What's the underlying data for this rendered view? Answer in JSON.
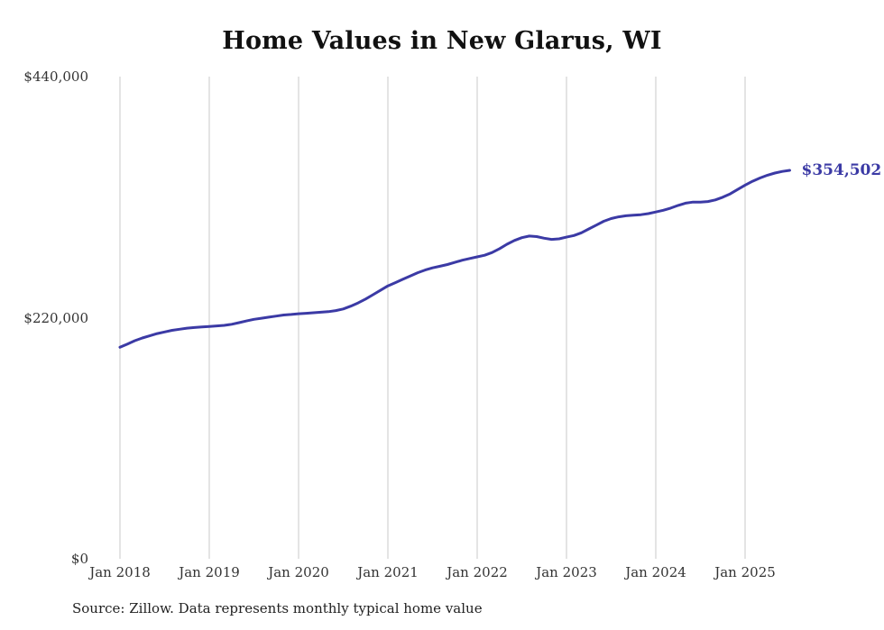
{
  "title": "Home Values in New Glarus, WI",
  "source_note": "Source: Zillow. Data represents monthly typical home value",
  "end_label": "$354,502",
  "colors": {
    "line": "#3b3aa5",
    "end_label": "#3b3aa5",
    "grid": "#c9c9c9",
    "axis_text": "#333333"
  },
  "y_axis": {
    "ticks": [
      {
        "label": "$0",
        "value": 0
      },
      {
        "label": "$220,000",
        "value": 220000
      },
      {
        "label": "$440,000",
        "value": 440000
      }
    ]
  },
  "x_axis": {
    "ticks": [
      "Jan 2018",
      "Jan 2019",
      "Jan 2020",
      "Jan 2021",
      "Jan 2022",
      "Jan 2023",
      "Jan 2024",
      "Jan 2025"
    ]
  },
  "chart_data": {
    "type": "line",
    "title": "Home Values in New Glarus, WI",
    "series_name": "Typical home value (USD)",
    "start_month": "2018-01",
    "end_month": "2025-07",
    "frequency": "monthly",
    "ylim": [
      0,
      440000
    ],
    "grid": "vertical-only",
    "final_value_label": "$354,502",
    "values": [
      193000,
      196000,
      199000,
      201500,
      203500,
      205500,
      207000,
      208500,
      209500,
      210500,
      211000,
      211500,
      212000,
      212500,
      213000,
      214000,
      215500,
      217000,
      218500,
      219500,
      220500,
      221500,
      222500,
      223000,
      223600,
      224000,
      224500,
      225000,
      225500,
      226500,
      228000,
      230500,
      233500,
      237000,
      241000,
      245000,
      249000,
      252000,
      255000,
      258000,
      261000,
      263500,
      265500,
      267000,
      268500,
      270500,
      272500,
      274000,
      275500,
      277000,
      279500,
      283000,
      287000,
      290500,
      293000,
      294500,
      294000,
      292500,
      291500,
      292000,
      293500,
      295000,
      297500,
      301000,
      304500,
      308000,
      310500,
      312000,
      313000,
      313500,
      314000,
      315000,
      316500,
      318000,
      320000,
      322500,
      324500,
      325500,
      325500,
      326000,
      327500,
      330000,
      333000,
      337000,
      341000,
      344500,
      347500,
      350000,
      352000,
      353500,
      354502
    ]
  }
}
